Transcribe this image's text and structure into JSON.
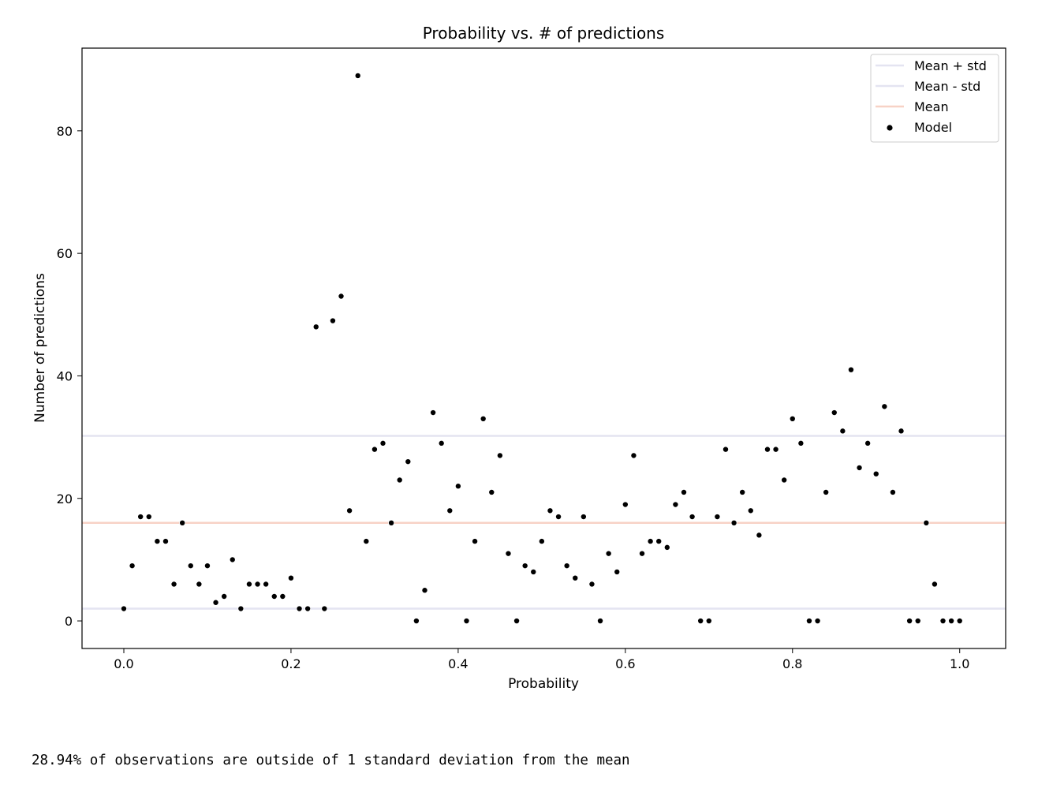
{
  "chart_data": {
    "type": "scatter",
    "title": "Probability vs. # of predictions",
    "xlabel": "Probability",
    "ylabel": "Number of predictions",
    "xlim": [
      -0.05,
      1.055
    ],
    "ylim": [
      -4.5,
      93.5
    ],
    "x_ticks": [
      0.0,
      0.2,
      0.4,
      0.6,
      0.8,
      1.0
    ],
    "x_tick_labels": [
      "0.0",
      "0.2",
      "0.4",
      "0.6",
      "0.8",
      "1.0"
    ],
    "y_ticks": [
      0,
      20,
      40,
      60,
      80
    ],
    "y_tick_labels": [
      "0",
      "20",
      "40",
      "60",
      "80"
    ],
    "grid": false,
    "legend_position": "top-right",
    "reference_lines": [
      {
        "name": "Mean + std",
        "y": 30.2,
        "color": "#e4e4f1"
      },
      {
        "name": "Mean - std",
        "y": 2.0,
        "color": "#e4e4f1"
      },
      {
        "name": "Mean",
        "y": 16.0,
        "color": "#f7d2c6"
      }
    ],
    "series": [
      {
        "name": "Model",
        "color": "#000000",
        "x": [
          0.0,
          0.01,
          0.02,
          0.03,
          0.04,
          0.05,
          0.06,
          0.07,
          0.08,
          0.09,
          0.1,
          0.11,
          0.12,
          0.13,
          0.14,
          0.15,
          0.16,
          0.17,
          0.18,
          0.19,
          0.2,
          0.21,
          0.22,
          0.23,
          0.24,
          0.25,
          0.26,
          0.27,
          0.28,
          0.29,
          0.3,
          0.31,
          0.32,
          0.33,
          0.34,
          0.35,
          0.36,
          0.37,
          0.38,
          0.39,
          0.4,
          0.41,
          0.42,
          0.43,
          0.44,
          0.45,
          0.46,
          0.47,
          0.48,
          0.49,
          0.5,
          0.51,
          0.52,
          0.53,
          0.54,
          0.55,
          0.56,
          0.57,
          0.58,
          0.59,
          0.6,
          0.61,
          0.62,
          0.63,
          0.64,
          0.65,
          0.66,
          0.67,
          0.68,
          0.69,
          0.7,
          0.71,
          0.72,
          0.73,
          0.74,
          0.75,
          0.76,
          0.77,
          0.78,
          0.79,
          0.8,
          0.81,
          0.82,
          0.83,
          0.84,
          0.85,
          0.86,
          0.87,
          0.88,
          0.89,
          0.9,
          0.91,
          0.92,
          0.93,
          0.94,
          0.95,
          0.96,
          0.97,
          0.98,
          0.99,
          1.0
        ],
        "y": [
          2,
          9,
          17,
          17,
          13,
          13,
          6,
          16,
          9,
          6,
          9,
          3,
          4,
          10,
          2,
          6,
          6,
          6,
          4,
          4,
          7,
          2,
          2,
          48,
          2,
          49,
          53,
          18,
          89,
          13,
          28,
          29,
          16,
          23,
          26,
          0,
          5,
          34,
          29,
          18,
          22,
          0,
          13,
          33,
          21,
          27,
          11,
          0,
          9,
          8,
          13,
          18,
          17,
          9,
          7,
          17,
          6,
          0,
          11,
          8,
          19,
          27,
          11,
          13,
          13,
          12,
          19,
          21,
          17,
          0,
          0,
          17,
          28,
          16,
          21,
          18,
          14,
          28,
          28,
          23,
          33,
          29,
          0,
          0,
          21,
          34,
          31,
          41,
          25,
          29,
          24,
          35,
          21,
          31,
          0,
          0,
          16,
          6,
          0,
          0,
          0
        ]
      }
    ]
  },
  "output_text": "28.94% of observations are outside of 1 standard deviation from the mean"
}
